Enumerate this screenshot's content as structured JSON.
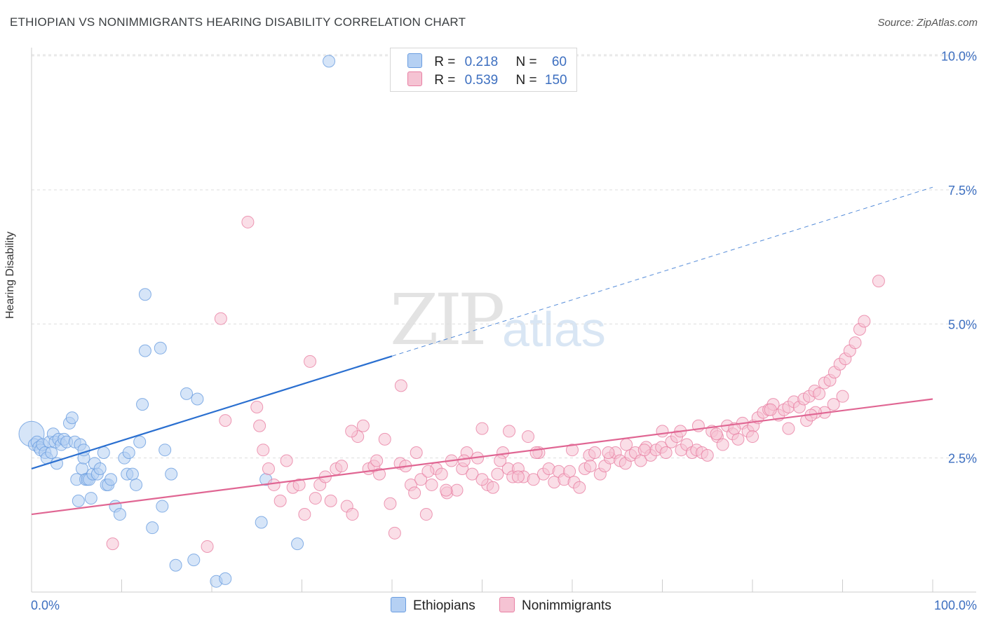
{
  "title": "ETHIOPIAN VS NONIMMIGRANTS HEARING DISABILITY CORRELATION CHART",
  "source": "Source: ZipAtlas.com",
  "watermark": {
    "zip": "ZIP",
    "atlas": "atlas"
  },
  "colors": {
    "blue": "#6a9de0",
    "blue_fill": "#b5d0f3",
    "blue_line": "#2a6fd0",
    "pink": "#e87fa3",
    "pink_fill": "#f5c3d3",
    "pink_line": "#e06693",
    "axis_text": "#3d6fc0"
  },
  "legend": {
    "rows": [
      {
        "r_label": "R =",
        "r_value": "0.218",
        "n_label": "N =",
        "n_value": "60"
      },
      {
        "r_label": "R =",
        "r_value": "0.539",
        "n_label": "N =",
        "n_value": "150"
      }
    ]
  },
  "bottom_legend": [
    "Ethiopians",
    "Nonimmigrants"
  ],
  "chart_data": {
    "type": "scatter",
    "title": "ETHIOPIAN VS NONIMMIGRANTS HEARING DISABILITY CORRELATION CHART",
    "xlabel": "",
    "ylabel": "Hearing Disability",
    "xlim": [
      0,
      100
    ],
    "ylim": [
      0,
      10.5
    ],
    "x_tick_labels": [
      "0.0%",
      "100.0%"
    ],
    "y_ticks": [
      2.5,
      5.0,
      7.5,
      10.0
    ],
    "y_tick_labels": [
      "2.5%",
      "5.0%",
      "7.5%",
      "10.0%"
    ],
    "grid": "horizontal dashed",
    "legend_position": "top-center",
    "series": [
      {
        "name": "Ethiopians",
        "r": 0.218,
        "n": 60,
        "trend": {
          "x0": 0,
          "y0": 2.3,
          "x1": 40,
          "y1": 4.4,
          "dashed_to_x": 100,
          "dashed_to_y": 7.55
        },
        "points": [
          [
            0,
            2.95
          ],
          [
            0.3,
            2.75
          ],
          [
            0.6,
            2.8
          ],
          [
            0.8,
            2.7
          ],
          [
            1.0,
            2.65
          ],
          [
            1.2,
            2.75
          ],
          [
            1.5,
            2.6
          ],
          [
            1.7,
            2.5
          ],
          [
            2.0,
            2.8
          ],
          [
            2.2,
            2.6
          ],
          [
            2.4,
            2.95
          ],
          [
            2.6,
            2.8
          ],
          [
            2.8,
            2.4
          ],
          [
            3.0,
            2.85
          ],
          [
            3.3,
            2.75
          ],
          [
            3.6,
            2.85
          ],
          [
            3.9,
            2.8
          ],
          [
            4.2,
            3.15
          ],
          [
            4.5,
            3.25
          ],
          [
            4.8,
            2.8
          ],
          [
            5.0,
            2.1
          ],
          [
            5.2,
            1.7
          ],
          [
            5.4,
            2.75
          ],
          [
            5.6,
            2.3
          ],
          [
            5.8,
            2.5
          ],
          [
            6.0,
            2.1
          ],
          [
            6.2,
            2.1
          ],
          [
            6.4,
            2.1
          ],
          [
            6.6,
            1.75
          ],
          [
            6.8,
            2.2
          ],
          [
            7.0,
            2.4
          ],
          [
            5.8,
            2.65
          ],
          [
            7.3,
            2.2
          ],
          [
            7.6,
            2.3
          ],
          [
            8.0,
            2.6
          ],
          [
            8.3,
            2.0
          ],
          [
            8.5,
            2.0
          ],
          [
            8.8,
            2.1
          ],
          [
            9.3,
            1.6
          ],
          [
            9.8,
            1.45
          ],
          [
            10.3,
            2.5
          ],
          [
            10.6,
            2.2
          ],
          [
            10.8,
            2.6
          ],
          [
            11.2,
            2.2
          ],
          [
            11.6,
            2.0
          ],
          [
            12.0,
            2.8
          ],
          [
            12.3,
            3.5
          ],
          [
            13.4,
            1.2
          ],
          [
            14.5,
            1.6
          ],
          [
            12.6,
            5.55
          ],
          [
            12.6,
            4.5
          ],
          [
            14.3,
            4.55
          ],
          [
            14.8,
            2.65
          ],
          [
            15.5,
            2.2
          ],
          [
            16.0,
            0.5
          ],
          [
            17.2,
            3.7
          ],
          [
            18.0,
            0.6
          ],
          [
            18.4,
            3.6
          ],
          [
            20.5,
            0.2
          ],
          [
            21.5,
            0.25
          ],
          [
            25.5,
            1.3
          ],
          [
            26.0,
            2.1
          ],
          [
            29.5,
            0.9
          ],
          [
            33.0,
            9.9
          ]
        ]
      },
      {
        "name": "Nonimmigrants",
        "r": 0.539,
        "n": 150,
        "trend": {
          "x0": 0,
          "y0": 1.45,
          "x1": 100,
          "y1": 3.6
        },
        "points": [
          [
            9,
            0.9
          ],
          [
            19.5,
            0.85
          ],
          [
            21,
            5.1
          ],
          [
            21.5,
            3.2
          ],
          [
            24,
            6.9
          ],
          [
            25,
            3.45
          ],
          [
            25.3,
            3.1
          ],
          [
            25.7,
            2.65
          ],
          [
            26.3,
            2.3
          ],
          [
            26.9,
            2.0
          ],
          [
            27.6,
            1.7
          ],
          [
            28.3,
            2.45
          ],
          [
            29.0,
            1.95
          ],
          [
            29.7,
            2.0
          ],
          [
            30.3,
            1.45
          ],
          [
            30.9,
            4.3
          ],
          [
            31.5,
            1.75
          ],
          [
            32.0,
            2.0
          ],
          [
            32.6,
            2.15
          ],
          [
            33.2,
            1.7
          ],
          [
            33.8,
            2.3
          ],
          [
            34.4,
            2.35
          ],
          [
            35.0,
            1.6
          ],
          [
            35.6,
            1.45
          ],
          [
            36.2,
            2.9
          ],
          [
            36.8,
            3.1
          ],
          [
            37.4,
            2.3
          ],
          [
            38.0,
            2.35
          ],
          [
            38.6,
            2.2
          ],
          [
            39.2,
            2.85
          ],
          [
            39.8,
            1.65
          ],
          [
            40.3,
            1.1
          ],
          [
            40.9,
            2.4
          ],
          [
            41.5,
            2.35
          ],
          [
            42.1,
            2.0
          ],
          [
            42.7,
            2.6
          ],
          [
            43.2,
            2.1
          ],
          [
            43.8,
            1.45
          ],
          [
            44.4,
            2.0
          ],
          [
            44.9,
            2.3
          ],
          [
            45.5,
            2.2
          ],
          [
            46.1,
            1.85
          ],
          [
            46.6,
            2.45
          ],
          [
            47.2,
            1.9
          ],
          [
            47.8,
            2.3
          ],
          [
            48.3,
            2.6
          ],
          [
            48.9,
            2.2
          ],
          [
            49.5,
            2.5
          ],
          [
            50.0,
            3.05
          ],
          [
            50.6,
            2.0
          ],
          [
            51.2,
            1.95
          ],
          [
            51.7,
            2.2
          ],
          [
            52.3,
            2.6
          ],
          [
            52.9,
            2.3
          ],
          [
            53.4,
            2.15
          ],
          [
            54.0,
            2.3
          ],
          [
            54.6,
            2.15
          ],
          [
            55.1,
            2.9
          ],
          [
            55.7,
            2.1
          ],
          [
            56.3,
            2.6
          ],
          [
            56.8,
            2.2
          ],
          [
            57.4,
            2.3
          ],
          [
            58.0,
            2.05
          ],
          [
            58.5,
            2.25
          ],
          [
            59.1,
            2.1
          ],
          [
            59.7,
            2.25
          ],
          [
            60.2,
            2.05
          ],
          [
            60.8,
            1.95
          ],
          [
            61.4,
            2.3
          ],
          [
            61.9,
            2.55
          ],
          [
            62.5,
            2.6
          ],
          [
            63.1,
            2.2
          ],
          [
            63.6,
            2.35
          ],
          [
            64.2,
            2.5
          ],
          [
            64.8,
            2.6
          ],
          [
            65.3,
            2.45
          ],
          [
            65.9,
            2.4
          ],
          [
            66.5,
            2.55
          ],
          [
            67.0,
            2.6
          ],
          [
            67.6,
            2.45
          ],
          [
            68.2,
            2.7
          ],
          [
            68.7,
            2.55
          ],
          [
            69.3,
            2.65
          ],
          [
            69.9,
            2.7
          ],
          [
            70.4,
            2.6
          ],
          [
            71.0,
            2.8
          ],
          [
            71.6,
            2.9
          ],
          [
            72.1,
            2.65
          ],
          [
            72.7,
            2.75
          ],
          [
            73.3,
            2.6
          ],
          [
            73.8,
            2.65
          ],
          [
            74.4,
            2.6
          ],
          [
            75.0,
            2.55
          ],
          [
            75.5,
            3.0
          ],
          [
            76.1,
            2.9
          ],
          [
            76.7,
            2.75
          ],
          [
            77.2,
            3.1
          ],
          [
            77.8,
            2.95
          ],
          [
            78.4,
            2.85
          ],
          [
            78.9,
            3.15
          ],
          [
            79.5,
            3.0
          ],
          [
            80.1,
            3.1
          ],
          [
            80.6,
            3.25
          ],
          [
            81.2,
            3.35
          ],
          [
            81.8,
            3.4
          ],
          [
            82.3,
            3.5
          ],
          [
            82.9,
            3.3
          ],
          [
            83.5,
            3.4
          ],
          [
            84.0,
            3.45
          ],
          [
            84.6,
            3.55
          ],
          [
            85.2,
            3.45
          ],
          [
            85.7,
            3.6
          ],
          [
            86.3,
            3.65
          ],
          [
            86.9,
            3.75
          ],
          [
            87.4,
            3.7
          ],
          [
            88.0,
            3.9
          ],
          [
            88.6,
            3.95
          ],
          [
            89.1,
            4.1
          ],
          [
            89.7,
            4.25
          ],
          [
            90.3,
            4.35
          ],
          [
            90.8,
            4.5
          ],
          [
            91.4,
            4.65
          ],
          [
            91.9,
            4.9
          ],
          [
            92.4,
            5.05
          ],
          [
            94.0,
            5.8
          ],
          [
            53.0,
            3.0
          ],
          [
            60.0,
            2.65
          ],
          [
            66.0,
            2.75
          ],
          [
            70.0,
            3.0
          ],
          [
            74.0,
            3.1
          ],
          [
            80.0,
            2.9
          ],
          [
            84.0,
            3.05
          ],
          [
            88.0,
            3.35
          ],
          [
            35.5,
            3.0
          ],
          [
            41.0,
            3.85
          ],
          [
            38.3,
            2.45
          ],
          [
            44.0,
            2.25
          ],
          [
            48.0,
            2.45
          ],
          [
            52.0,
            2.45
          ],
          [
            56.0,
            2.6
          ],
          [
            62.0,
            2.35
          ],
          [
            64.0,
            2.6
          ],
          [
            68.0,
            2.65
          ],
          [
            72.0,
            3.0
          ],
          [
            76.0,
            2.95
          ],
          [
            78.0,
            3.05
          ],
          [
            82.0,
            3.4
          ],
          [
            86.0,
            3.2
          ],
          [
            87.0,
            3.35
          ],
          [
            89.0,
            3.5
          ],
          [
            90.0,
            3.65
          ],
          [
            86.5,
            3.3
          ],
          [
            42.5,
            1.85
          ],
          [
            46.0,
            1.9
          ],
          [
            50.0,
            2.1
          ],
          [
            54.0,
            2.15
          ]
        ]
      }
    ]
  }
}
